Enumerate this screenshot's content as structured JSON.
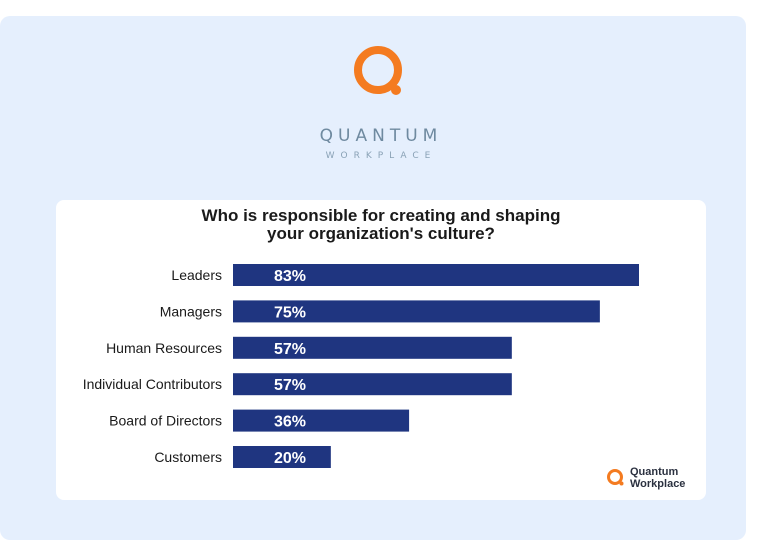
{
  "brand": {
    "name": "QUANTUM",
    "tagline": "WORKPLACE",
    "footer_line1": "Quantum",
    "footer_line2": "Workplace",
    "colors": {
      "orange": "#f47b20",
      "navy": "#1f3580",
      "page": "#e5effd"
    }
  },
  "chart_data": {
    "type": "bar",
    "orientation": "horizontal",
    "title_lines": [
      "Who is responsible for creating and shaping",
      "your organization's culture?"
    ],
    "categories": [
      "Leaders",
      "Managers",
      "Human Resources",
      "Individual Contributors",
      "Board of Directors",
      "Customers"
    ],
    "values": [
      83,
      75,
      57,
      57,
      36,
      20
    ],
    "value_labels": [
      "83%",
      "75%",
      "57%",
      "57%",
      "36%",
      "20%"
    ],
    "xlim": [
      0,
      100
    ],
    "bar_color": "#1f3580",
    "grid": false,
    "legend": "none"
  }
}
